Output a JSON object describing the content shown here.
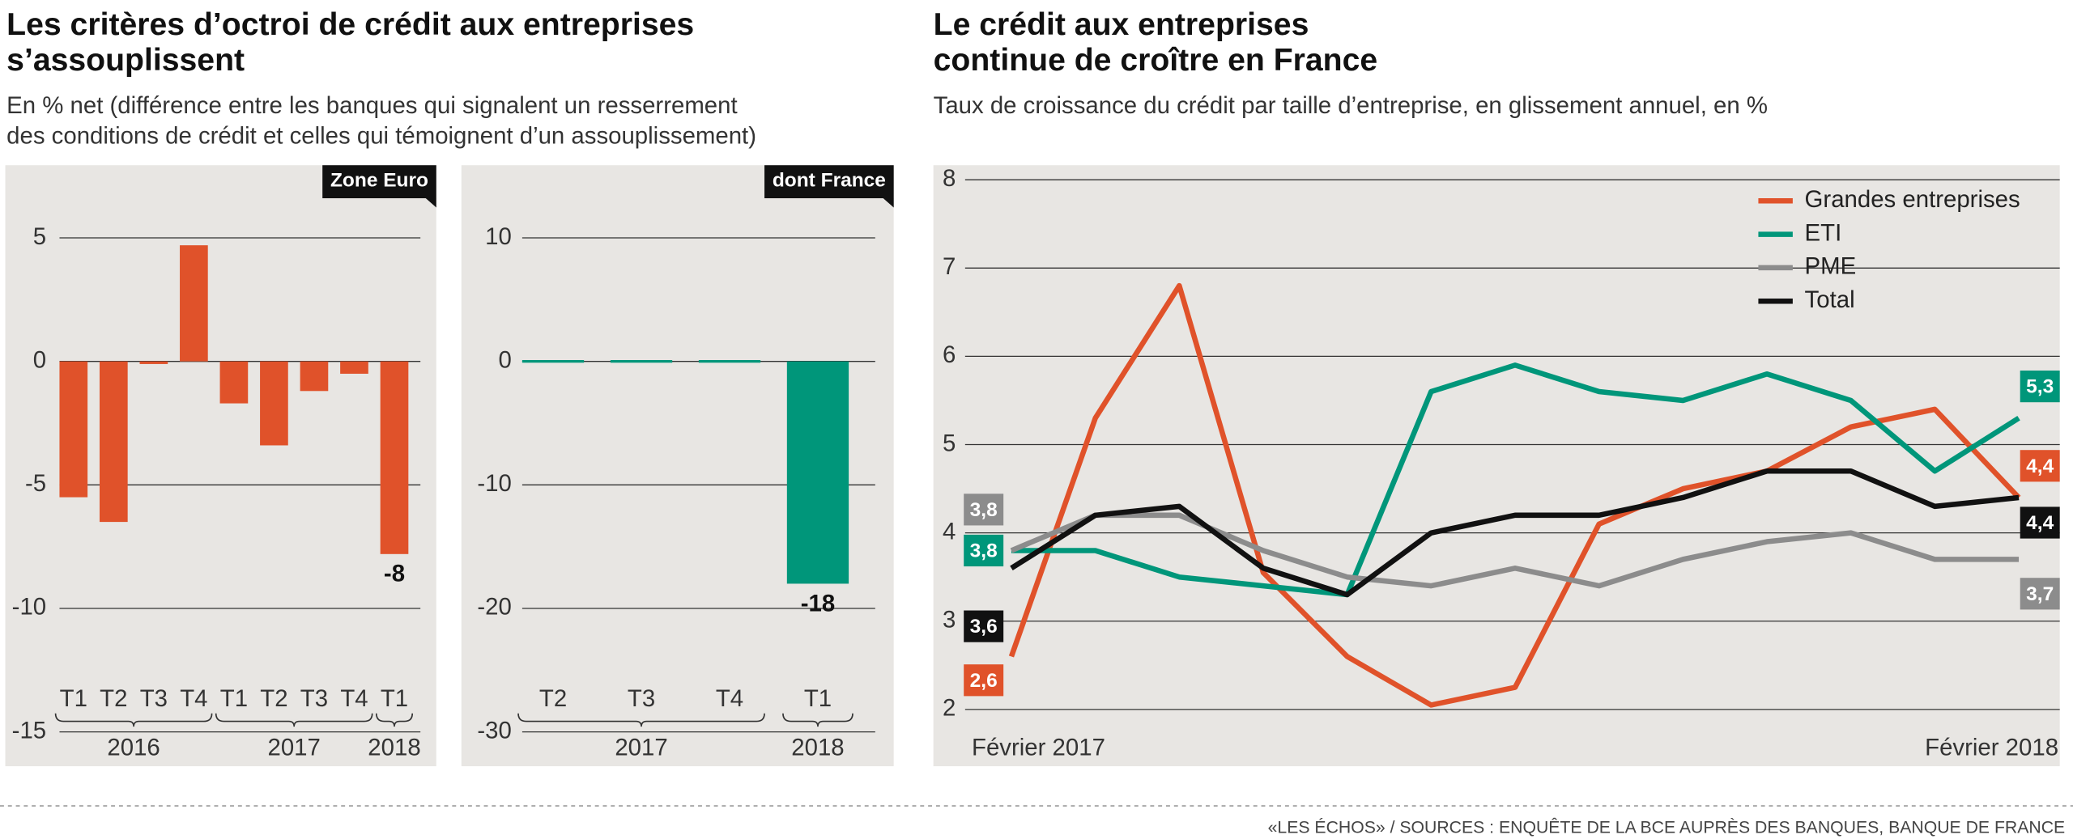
{
  "headlines": [
    {
      "title": [
        "Les critères d’octroi de crédit aux entreprises",
        "s’assouplissent"
      ],
      "subtitle": [
        "En % net (différence entre les banques qui signalent un resserrement",
        "des conditions de crédit et celles qui témoignent d’un assouplissement)"
      ]
    },
    {
      "title": [
        "Le crédit aux entreprises",
        "continue de croître en France"
      ],
      "subtitle": [
        "Taux de croissance du crédit par taille d’entreprise, en glissement annuel, en %"
      ]
    }
  ],
  "chart_data": [
    {
      "type": "bar",
      "tag": "Zone Euro",
      "color": "#e0522a",
      "groups": [
        {
          "label": "2016",
          "categories": [
            "T1",
            "T2",
            "T3",
            "T4"
          ],
          "values": [
            -5.5,
            -6.5,
            -0.1,
            4.7
          ],
          "value_labels": [
            null,
            null,
            null,
            null
          ]
        },
        {
          "label": "2017",
          "categories": [
            "T1",
            "T2",
            "T3",
            "T4"
          ],
          "values": [
            -1.7,
            -3.4,
            -1.2,
            -0.5
          ],
          "value_labels": [
            null,
            null,
            null,
            null
          ]
        },
        {
          "label": "2018",
          "categories": [
            "T1"
          ],
          "values": [
            -7.8
          ],
          "value_labels": [
            "-8"
          ]
        }
      ],
      "ylim": [
        -15,
        5
      ],
      "yticks": [
        5,
        0,
        -5,
        -10,
        -15
      ],
      "grid": true
    },
    {
      "type": "bar",
      "tag": "dont France",
      "color": "#00967a",
      "groups": [
        {
          "label": "2017",
          "categories": [
            "T2",
            "T3",
            "T4"
          ],
          "values": [
            0,
            0,
            0
          ],
          "value_labels": [
            null,
            null,
            null
          ]
        },
        {
          "label": "2018",
          "categories": [
            "T1"
          ],
          "values": [
            -18
          ],
          "value_labels": [
            "-18"
          ]
        }
      ],
      "ylim": [
        -30,
        10
      ],
      "yticks": [
        10,
        0,
        -10,
        -20,
        -30
      ],
      "grid": true
    },
    {
      "type": "line",
      "legend": "top-right",
      "grid": true,
      "categories": [
        "Février 2017",
        null,
        null,
        null,
        null,
        null,
        null,
        null,
        null,
        null,
        null,
        null,
        "Février 2018"
      ],
      "series": [
        {
          "name": "Grandes entreprises",
          "color": "#e0522a",
          "values": [
            2.6,
            5.3,
            6.8,
            3.55,
            2.6,
            2.05,
            2.25,
            4.1,
            4.5,
            4.7,
            5.2,
            5.4,
            4.4
          ],
          "value_labels": [
            "2,6",
            null,
            null,
            null,
            null,
            null,
            null,
            null,
            null,
            null,
            null,
            null,
            "4,4"
          ]
        },
        {
          "name": "ETI",
          "color": "#00967a",
          "values": [
            3.8,
            3.8,
            3.5,
            3.4,
            3.3,
            5.6,
            5.9,
            5.6,
            5.5,
            5.8,
            5.5,
            4.7,
            5.3
          ],
          "value_labels": [
            "3,8",
            null,
            null,
            null,
            null,
            null,
            null,
            null,
            null,
            null,
            null,
            null,
            "5,3"
          ]
        },
        {
          "name": "PME",
          "color": "#8c8c8c",
          "values": [
            3.8,
            4.2,
            4.2,
            3.8,
            3.5,
            3.4,
            3.6,
            3.4,
            3.7,
            3.9,
            4.0,
            3.7,
            3.7
          ],
          "value_labels": [
            "3,8",
            null,
            null,
            null,
            null,
            null,
            null,
            null,
            null,
            null,
            null,
            null,
            "3,7"
          ]
        },
        {
          "name": "Total",
          "color": "#111111",
          "values": [
            3.6,
            4.2,
            4.3,
            3.6,
            3.3,
            4.0,
            4.2,
            4.2,
            4.4,
            4.7,
            4.7,
            4.3,
            4.4
          ],
          "value_labels": [
            "3,6",
            null,
            null,
            null,
            null,
            null,
            null,
            null,
            null,
            null,
            null,
            null,
            "4,4"
          ]
        }
      ],
      "ylim": [
        2,
        8
      ],
      "yticks": [
        8,
        7,
        6,
        5,
        4,
        3,
        2
      ]
    }
  ],
  "source": "«LES ÉCHOS» / SOURCES : ENQUÊTE DE LA BCE AUPRÈS DES BANQUES, BANQUE DE FRANCE"
}
